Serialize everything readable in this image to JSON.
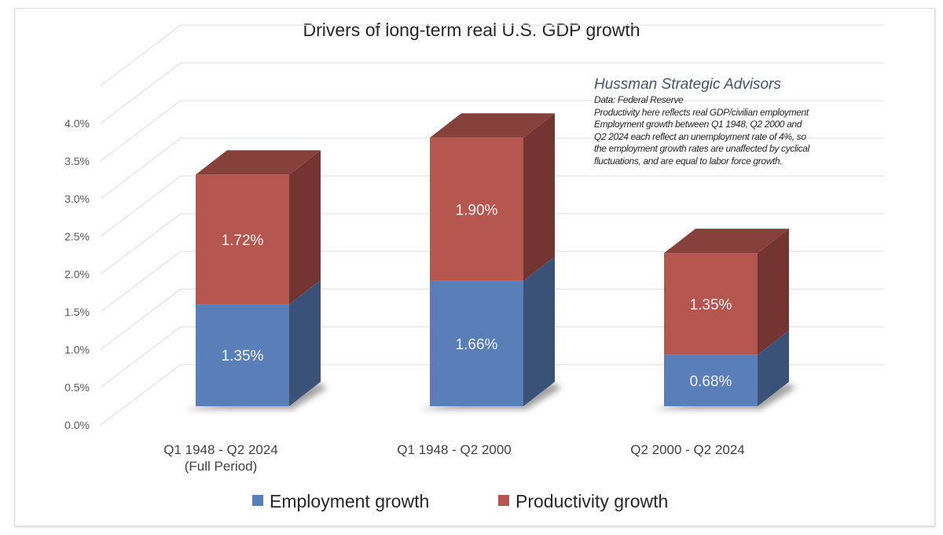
{
  "chart_data": {
    "type": "bar",
    "subtype": "stacked-3d",
    "title": "Drivers of long-term real U.S. GDP growth",
    "xlabel": "",
    "ylabel": "",
    "ylim": [
      0,
      4.5
    ],
    "yticks": [
      0.0,
      0.5,
      1.0,
      1.5,
      2.0,
      2.5,
      3.0,
      3.5,
      4.0
    ],
    "ytick_labels": [
      "0.0%",
      "0.5%",
      "1.0%",
      "1.5%",
      "2.0%",
      "2.5%",
      "3.0%",
      "3.5%",
      "4.0%"
    ],
    "grid": true,
    "categories": [
      [
        "Q1 1948 - Q2 2024",
        "(Full Period)"
      ],
      [
        "Q1 1948 - Q2 2000"
      ],
      [
        "Q2 2000 - Q2 2024"
      ]
    ],
    "series": [
      {
        "name": "Employment growth",
        "values": [
          1.35,
          1.66,
          0.68
        ],
        "labels": [
          "1.35%",
          "1.66%",
          "0.68%"
        ],
        "color": "#5a7fb8",
        "side_color": "#3a5278",
        "top_color": "#44608c"
      },
      {
        "name": "Productivity growth",
        "values": [
          1.72,
          1.9,
          1.35
        ],
        "labels": [
          "1.72%",
          "1.90%",
          "1.35%"
        ],
        "color": "#b5574f",
        "side_color": "#743532",
        "top_color": "#87413d"
      }
    ],
    "legend_position": "bottom",
    "annotation": {
      "brand": "Hussman Strategic Advisors",
      "lines": [
        "Data: Federal Reserve",
        "Productivity here reflects real GDP/civilian employment",
        "Employment growth between Q1 1948, Q2 2000 and",
        "Q2 2024 each reflect an unemployment rate of 4%, so",
        "the employment growth rates are unaffected by cyclical",
        "fluctuations, and are equal to labor force growth."
      ]
    }
  }
}
